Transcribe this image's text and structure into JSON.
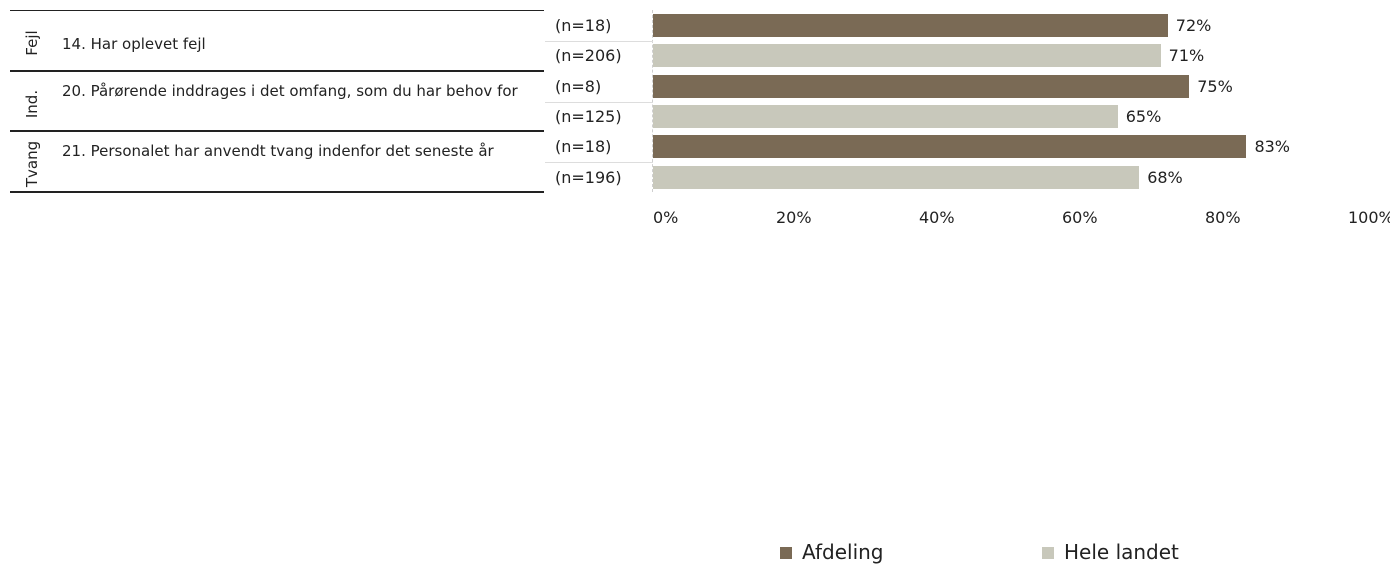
{
  "chart_data": {
    "type": "bar",
    "orientation": "horizontal",
    "xlim": [
      0,
      100
    ],
    "x_ticks": [
      "0%",
      "20%",
      "40%",
      "60%",
      "80%",
      "100%"
    ],
    "series": [
      {
        "name": "Afdeling",
        "color": "#7a6a55"
      },
      {
        "name": "Hele landet",
        "color": "#c8c8bb"
      }
    ],
    "groups": [
      {
        "group": "Fejl",
        "question": "14. Har oplevet fejl",
        "rows": [
          {
            "series": "Afdeling",
            "n": "(n=18)",
            "value": 72,
            "label": "72%"
          },
          {
            "series": "Hele landet",
            "n": "(n=206)",
            "value": 71,
            "label": "71%"
          }
        ]
      },
      {
        "group": "Ind.",
        "question": "20. Pårørende inddrages i det omfang, som du har behov for",
        "rows": [
          {
            "series": "Afdeling",
            "n": "(n=8)",
            "value": 75,
            "label": "75%"
          },
          {
            "series": "Hele landet",
            "n": "(n=125)",
            "value": 65,
            "label": "65%"
          }
        ]
      },
      {
        "group": "Tvang",
        "question": "21. Personalet har anvendt tvang indenfor det seneste år",
        "rows": [
          {
            "series": "Afdeling",
            "n": "(n=18)",
            "value": 83,
            "label": "83%"
          },
          {
            "series": "Hele landet",
            "n": "(n=196)",
            "value": 68,
            "label": "68%"
          }
        ]
      }
    ],
    "legend": {
      "position": "bottom",
      "items": [
        "Afdeling",
        "Hele landet"
      ]
    }
  }
}
